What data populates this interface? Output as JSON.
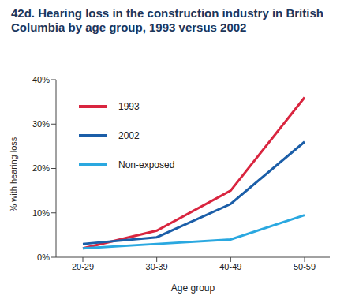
{
  "chart_data": {
    "type": "line",
    "title": "42d. Hearing loss in the construction industry in British Columbia by age group, 1993 versus 2002",
    "x_label": "Age group",
    "y_label": "% with hearing loss",
    "categories": [
      "20-29",
      "30-39",
      "40-49",
      "50-59"
    ],
    "series": [
      {
        "name": "1993",
        "color": "#d9253f",
        "values": [
          2,
          6,
          15,
          36
        ]
      },
      {
        "name": "2002",
        "color": "#1b5ea8",
        "values": [
          3,
          4.5,
          12,
          26
        ]
      },
      {
        "name": "Non-exposed",
        "color": "#2aa8e0",
        "values": [
          2,
          3,
          4,
          9.5
        ]
      }
    ],
    "ylim": [
      0,
      40
    ],
    "yticks": [
      {
        "value": 0,
        "label": "0%"
      },
      {
        "value": 10,
        "label": "10%"
      },
      {
        "value": 20,
        "label": "20%"
      },
      {
        "value": 30,
        "label": "30%"
      },
      {
        "value": 40,
        "label": "40%"
      }
    ],
    "grid": false,
    "legend": "upper-left"
  }
}
